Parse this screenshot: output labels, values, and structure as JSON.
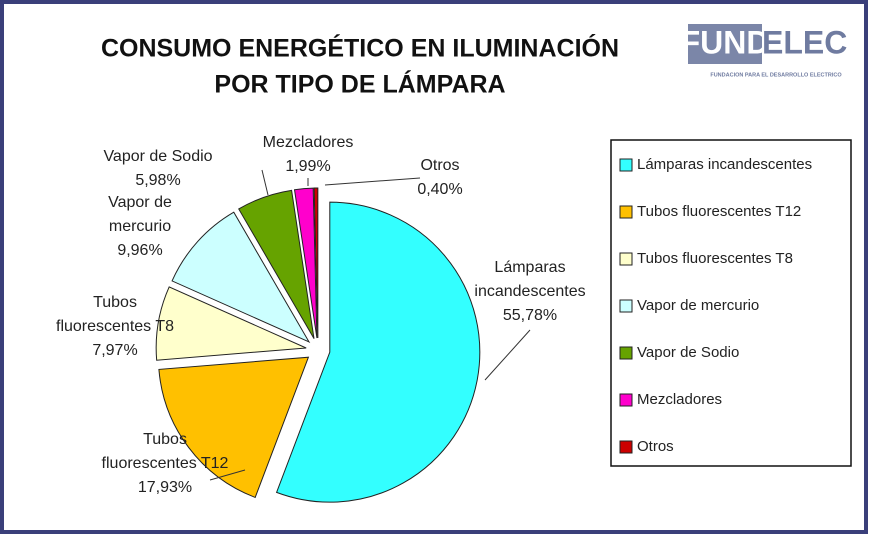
{
  "chart_data": {
    "type": "pie",
    "title": [
      "CONSUMO ENERGÉTICO EN ILUMINACIÓN",
      "POR TIPO DE LÁMPARA"
    ],
    "logo": {
      "parts": [
        "FUND",
        "ELEC"
      ],
      "tagline": "FUNDACION PARA EL DESARROLLO ELECTRICO"
    },
    "categories": [
      "Lámparas incandescentes",
      "Tubos fluorescentes T12",
      "Tubos fluorescentes T8",
      "Vapor de mercurio",
      "Vapor de Sodio",
      "Mezcladores",
      "Otros"
    ],
    "values": [
      55.78,
      17.93,
      7.97,
      9.96,
      5.98,
      1.99,
      0.4
    ],
    "value_labels": [
      "55,78%",
      "17,93%",
      "7,97%",
      "9,96%",
      "5,98%",
      "1,99%",
      "0,40%"
    ],
    "colors": [
      "#33ffff",
      "#ffc000",
      "#ffffcc",
      "#ccffff",
      "#66a300",
      "#ff00cc",
      "#cc0000"
    ],
    "legend": "right"
  }
}
